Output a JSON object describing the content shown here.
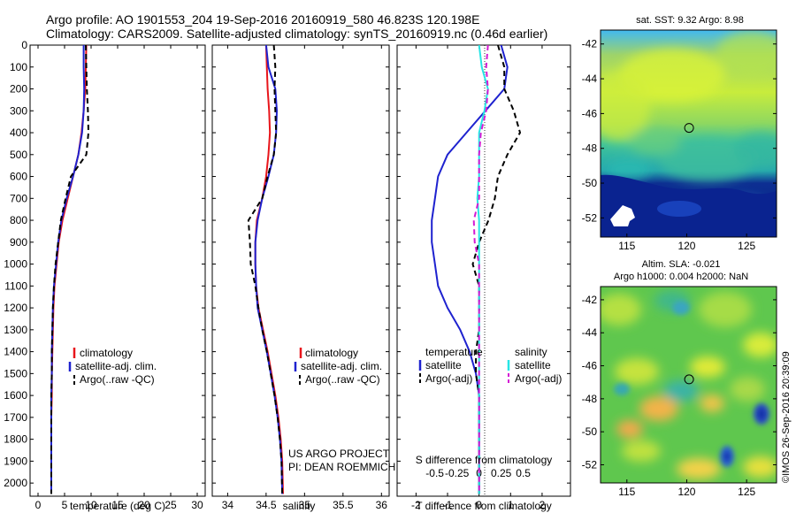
{
  "header": {
    "line1": "Argo profile: AO 1901553_204 19-Sep-2016 20160919_580 46.823S 120.198E",
    "line2": "Climatology: CARS2009. Satellite-adjusted climatology: synTS_20160919.nc (0.46d earlier)"
  },
  "colors": {
    "climatology": "#e8151b",
    "satellite": "#1e22cf",
    "argo": "#000000",
    "sal_satellite": "#27e5e5",
    "sal_argo": "#d41ad4"
  },
  "chart_data": [
    {
      "type": "line",
      "name": "temperature",
      "xlabel": "temperature (deg C)",
      "ylabel": "",
      "xlim": [
        -1.5,
        31.5
      ],
      "ylim": [
        2060,
        0
      ],
      "xticks": [
        0,
        5,
        10,
        15,
        20,
        25,
        30
      ],
      "xtick_labels": [
        "0",
        "5",
        "10",
        "15",
        "20",
        "25",
        "30"
      ],
      "yticks": [
        0,
        100,
        200,
        300,
        400,
        500,
        600,
        700,
        800,
        900,
        1000,
        1100,
        1200,
        1300,
        1400,
        1500,
        1600,
        1700,
        1800,
        1900,
        2000
      ],
      "ytick_labels": [
        "0",
        "100",
        "200",
        "300",
        "400",
        "500",
        "600",
        "700",
        "800",
        "900",
        "1000",
        "1100",
        "1200",
        "1300",
        "1400",
        "1500",
        "1600",
        "1700",
        "1800",
        "1900",
        "2000"
      ],
      "legend": [
        "climatology",
        "satellite-adj. clim.",
        "Argo(..raw -QC)"
      ],
      "series": [
        {
          "name": "climatology",
          "style": "solid",
          "x": [
            9.1,
            9.0,
            8.9,
            8.6,
            8.2,
            7.6,
            6.6,
            5.6,
            4.6,
            3.9,
            3.5,
            3.1,
            2.9,
            2.8,
            2.7,
            2.6,
            2.6,
            2.5,
            2.5,
            2.5,
            2.5
          ],
          "y": [
            0,
            100,
            200,
            300,
            400,
            500,
            600,
            700,
            800,
            900,
            1000,
            1100,
            1200,
            1300,
            1400,
            1500,
            1600,
            1700,
            1800,
            1900,
            2050
          ]
        },
        {
          "name": "satellite",
          "style": "solid",
          "x": [
            8.6,
            8.6,
            8.7,
            8.6,
            8.3,
            7.6,
            6.6,
            5.4,
            4.4,
            3.8,
            3.4,
            3.0,
            2.8,
            2.7,
            2.6,
            2.6,
            2.5,
            2.5,
            2.5,
            2.5,
            2.5
          ],
          "y": [
            0,
            100,
            200,
            300,
            400,
            500,
            600,
            700,
            800,
            900,
            1000,
            1100,
            1200,
            1300,
            1400,
            1500,
            1600,
            1700,
            1800,
            1900,
            2050
          ]
        },
        {
          "name": "argo",
          "style": "dashed",
          "x": [
            9.0,
            9.1,
            9.2,
            9.4,
            9.5,
            9.1,
            6.2,
            5.2,
            4.3,
            3.8,
            3.3,
            3.0,
            2.8,
            2.7,
            2.6,
            2.6,
            2.5,
            2.5,
            2.5,
            2.5,
            2.5
          ],
          "y": [
            0,
            100,
            200,
            300,
            400,
            500,
            600,
            700,
            800,
            900,
            1000,
            1100,
            1200,
            1300,
            1400,
            1500,
            1600,
            1700,
            1800,
            1900,
            2050
          ]
        }
      ]
    },
    {
      "type": "line",
      "name": "salinity",
      "xlabel": "salinity",
      "ylabel": "",
      "xlim": [
        33.8,
        36.1
      ],
      "ylim": [
        2060,
        0
      ],
      "xticks": [
        34,
        34.5,
        35,
        35.5,
        36
      ],
      "xtick_labels": [
        "34",
        "34.5",
        "35",
        "35.5",
        "36"
      ],
      "legend": [
        "climatology",
        "satellite-adj. clim.",
        "Argo(..raw -QC)"
      ],
      "annotation": [
        "US ARGO PROJECT",
        "PI: DEAN ROEMMICH"
      ],
      "series": [
        {
          "name": "climatology",
          "style": "solid",
          "x": [
            34.5,
            34.51,
            34.52,
            34.54,
            34.55,
            34.53,
            34.5,
            34.45,
            34.38,
            34.36,
            34.36,
            34.37,
            34.4,
            34.46,
            34.52,
            34.57,
            34.62,
            34.66,
            34.69,
            34.71,
            34.72
          ],
          "y": [
            0,
            100,
            200,
            300,
            400,
            500,
            600,
            700,
            800,
            900,
            1000,
            1100,
            1200,
            1300,
            1400,
            1500,
            1600,
            1700,
            1800,
            1900,
            2050
          ]
        },
        {
          "name": "satellite",
          "style": "solid",
          "x": [
            34.5,
            34.53,
            34.62,
            34.64,
            34.63,
            34.6,
            34.53,
            34.45,
            34.39,
            34.36,
            34.36,
            34.37,
            34.39,
            34.45,
            34.51,
            34.56,
            34.61,
            34.65,
            34.68,
            34.7,
            34.71
          ],
          "y": [
            0,
            100,
            200,
            300,
            400,
            500,
            600,
            700,
            800,
            900,
            1000,
            1100,
            1200,
            1300,
            1400,
            1500,
            1600,
            1700,
            1800,
            1900,
            2050
          ]
        },
        {
          "name": "argo",
          "style": "dashed",
          "x": [
            34.6,
            34.62,
            34.61,
            34.62,
            34.63,
            34.6,
            34.52,
            34.45,
            34.27,
            34.29,
            34.3,
            34.36,
            34.4,
            34.45,
            34.51,
            34.56,
            34.61,
            34.65,
            34.68,
            34.7,
            34.71
          ],
          "y": [
            0,
            100,
            200,
            300,
            400,
            500,
            600,
            700,
            800,
            900,
            1000,
            1100,
            1200,
            1300,
            1400,
            1500,
            1600,
            1700,
            1800,
            1900,
            2050
          ]
        }
      ]
    },
    {
      "type": "line",
      "name": "difference_from_climatology",
      "xlabel": "T difference from climatology",
      "xlabel_top": "S difference from climatology",
      "xlim": [
        -2.6,
        2.9
      ],
      "ylim": [
        2060,
        0
      ],
      "xticks": [
        -2,
        -1,
        0,
        1,
        2
      ],
      "xtick_labels": [
        "-2",
        "-1",
        "0",
        "1",
        "2"
      ],
      "sticks": [
        -0.5,
        -0.25,
        0,
        0.25,
        0.5
      ],
      "stick_labels": [
        "-0.5",
        "-0.25",
        "0",
        "0.25",
        "0.5"
      ],
      "legend_temperature_title": "temperature",
      "legend_salinity_title": "salinity",
      "legend": [
        "satellite",
        "Argo(-adj)",
        "satellite",
        "Argo(-adj)"
      ],
      "series": [
        {
          "name": "T satellite",
          "style": "solid",
          "x": [
            0.7,
            0.9,
            0.8,
            0.2,
            -0.4,
            -1.0,
            -1.3,
            -1.4,
            -1.5,
            -1.5,
            -1.4,
            -1.3,
            -1.0,
            -0.6,
            -0.3,
            -0.1,
            0.0,
            0.0,
            0.0,
            0.0,
            0.0
          ],
          "y": [
            0,
            100,
            200,
            300,
            400,
            500,
            600,
            700,
            800,
            900,
            1000,
            1100,
            1200,
            1300,
            1400,
            1500,
            1600,
            1700,
            1800,
            1900,
            2050
          ]
        },
        {
          "name": "T argo",
          "style": "dashed",
          "x": [
            0.6,
            0.8,
            0.8,
            1.1,
            1.3,
            0.9,
            0.6,
            0.5,
            0.3,
            0.0,
            -0.2,
            0.0,
            0.0,
            0.0,
            -0.1,
            -0.1,
            0.0,
            0.0,
            0.0,
            0.0,
            0.0
          ],
          "y": [
            0,
            100,
            200,
            300,
            400,
            500,
            600,
            700,
            800,
            900,
            1000,
            1100,
            1200,
            1300,
            1400,
            1500,
            1600,
            1700,
            1800,
            1900,
            2050
          ]
        },
        {
          "name": "S satellite",
          "style": "solid",
          "x": [
            0.0,
            0.03,
            0.1,
            0.06,
            0.0,
            0.0,
            0.0,
            -0.02,
            0.0,
            0.0,
            0.0,
            0.0,
            0.0,
            0.0,
            0.0,
            0.0,
            0.0,
            0.0,
            0.0,
            0.0,
            0.0
          ],
          "y": [
            0,
            100,
            200,
            300,
            400,
            500,
            600,
            700,
            800,
            900,
            1000,
            1100,
            1200,
            1300,
            1400,
            1500,
            1600,
            1700,
            1800,
            1900,
            2050
          ]
        },
        {
          "name": "S argo",
          "style": "dashed",
          "x": [
            0.1,
            0.08,
            0.1,
            0.08,
            0.02,
            0.0,
            0.0,
            0.0,
            -0.06,
            -0.05,
            0.0,
            0.0,
            0.0,
            0.0,
            0.0,
            0.0,
            0.0,
            0.0,
            0.0,
            0.0,
            0.0
          ],
          "y": [
            0,
            100,
            200,
            300,
            400,
            500,
            600,
            700,
            800,
            900,
            1000,
            1100,
            1200,
            1300,
            1400,
            1500,
            1600,
            1700,
            1800,
            1900,
            2050
          ]
        }
      ]
    },
    {
      "type": "heatmap",
      "name": "sat_sst_map",
      "title": "sat. SST: 9.32 Argo: 8.98",
      "xlim": [
        112.8,
        127.5
      ],
      "ylim": [
        -53.1,
        -41.2
      ],
      "xticks": [
        115,
        120,
        125
      ],
      "xtick_labels": [
        "115",
        "120",
        "125"
      ],
      "yticks": [
        -42,
        -44,
        -46,
        -48,
        -50,
        -52
      ],
      "ytick_labels": [
        "-42",
        "-44",
        "-46",
        "-48",
        "-50",
        "-52"
      ],
      "marker": {
        "lon": 120.198,
        "lat": -46.823
      }
    },
    {
      "type": "heatmap",
      "name": "altimetry_sla_map",
      "title_line1": "Altim. SLA: -0.021",
      "title_line2": "Argo h1000: 0.004 h2000: NaN",
      "xlim": [
        112.8,
        127.5
      ],
      "ylim": [
        -53.1,
        -41.2
      ],
      "xticks": [
        115,
        120,
        125
      ],
      "xtick_labels": [
        "115",
        "120",
        "125"
      ],
      "yticks": [
        -42,
        -44,
        -46,
        -48,
        -50,
        -52
      ],
      "ytick_labels": [
        "-42",
        "-44",
        "-46",
        "-48",
        "-50",
        "-52"
      ],
      "marker": {
        "lon": 120.198,
        "lat": -46.823
      }
    }
  ],
  "credit": "©IMOS 26-Sep-2016 20:39:09"
}
